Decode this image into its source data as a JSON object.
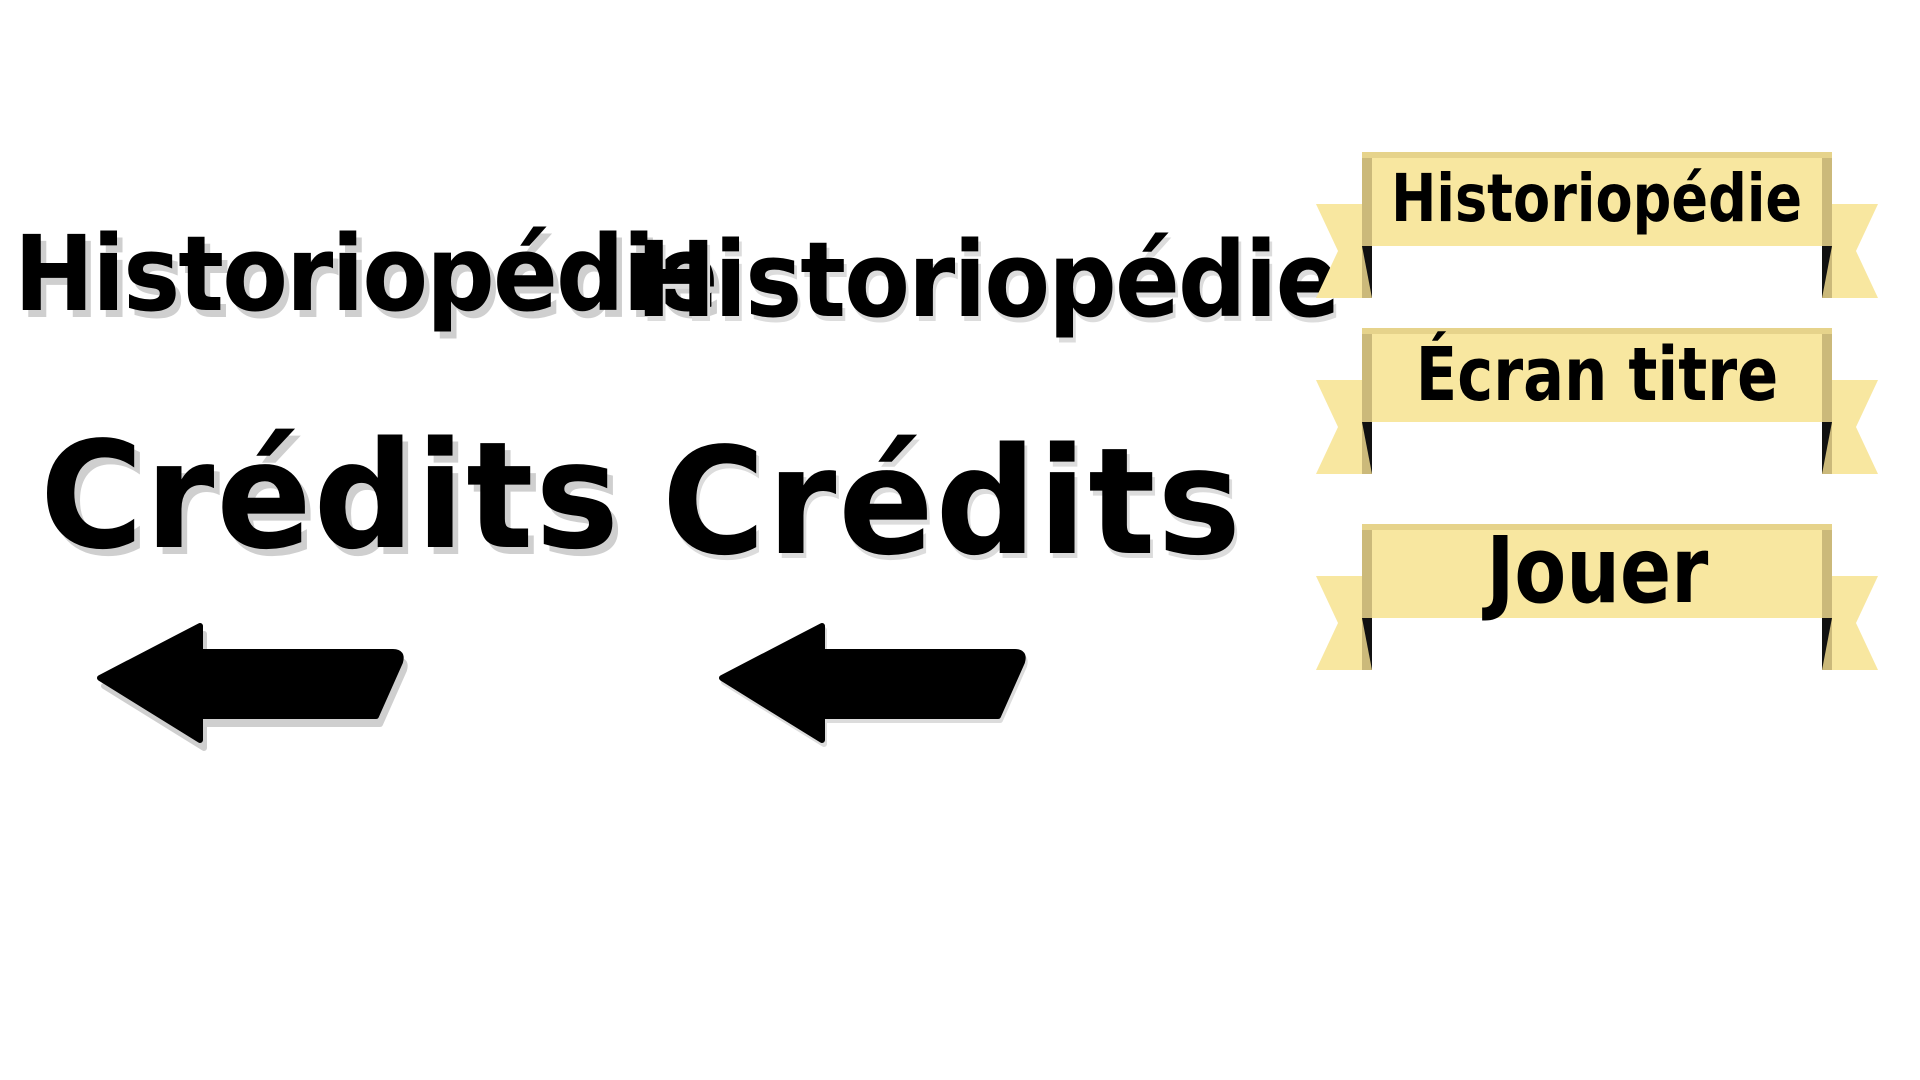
{
  "game": {
    "left_variant": {
      "title": "Historiopédie",
      "credits_label": "Crédits"
    },
    "middle_variant": {
      "title": "Historiopédie",
      "credits_label": "Crédits"
    },
    "menu_banners": [
      {
        "label": "Historiopédie"
      },
      {
        "label": "Écran titre"
      },
      {
        "label": "Jouer"
      }
    ],
    "icons": {
      "back_arrow": "arrow-left-icon"
    },
    "colors": {
      "text": "#000000",
      "shadow": "#cfcfcf",
      "banner_fill": "#f8e7a0",
      "banner_edge": "#cbb97a",
      "banner_fold": "#111111",
      "background": "#ffffff"
    }
  }
}
